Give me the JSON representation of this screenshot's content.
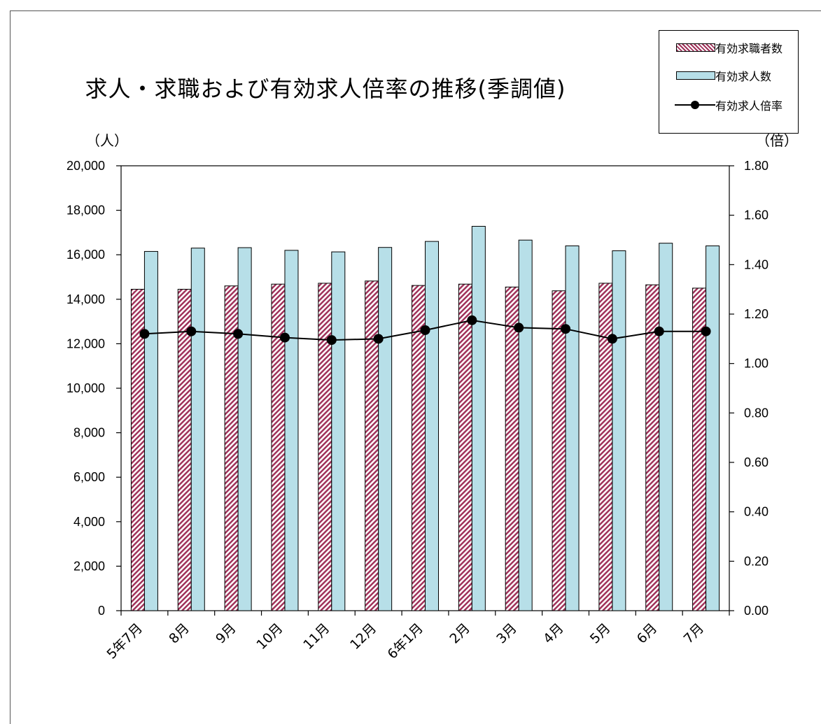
{
  "chart_data": {
    "type": "bar",
    "title": "求人・求職および有効求人倍率の推移(季調値)",
    "y_unit_left": "（人）",
    "y_unit_right": "（倍）",
    "categories": [
      "5年7月",
      "8月",
      "9月",
      "10月",
      "11月",
      "12月",
      "6年1月",
      "2月",
      "3月",
      "4月",
      "5月",
      "6月",
      "7月"
    ],
    "ylim_left": [
      0,
      20000
    ],
    "ylim_right": [
      0,
      1.8
    ],
    "yticks_left": [
      "0",
      "2,000",
      "4,000",
      "6,000",
      "8,000",
      "10,000",
      "12,000",
      "14,000",
      "16,000",
      "18,000",
      "20,000"
    ],
    "yticks_right": [
      "0.00",
      "0.20",
      "0.40",
      "0.60",
      "0.80",
      "1.00",
      "1.20",
      "1.40",
      "1.60",
      "1.80"
    ],
    "legend_position": "top-right",
    "series": [
      {
        "name": "有効求職者数",
        "type": "bar",
        "axis": "left",
        "color": "#a0325a",
        "pattern": "diagonal-hatch",
        "values": [
          14450,
          14450,
          14600,
          14680,
          14720,
          14820,
          14620,
          14680,
          14550,
          14380,
          14720,
          14650,
          14500
        ]
      },
      {
        "name": "有効求人数",
        "type": "bar",
        "axis": "left",
        "color": "#b7dfe8",
        "values": [
          16150,
          16300,
          16320,
          16200,
          16130,
          16330,
          16600,
          17280,
          16660,
          16400,
          16180,
          16520,
          16400
        ]
      },
      {
        "name": "有効求人倍率",
        "type": "line",
        "axis": "right",
        "color": "#000000",
        "marker": "circle",
        "values": [
          1.12,
          1.13,
          1.12,
          1.105,
          1.095,
          1.1,
          1.135,
          1.175,
          1.145,
          1.14,
          1.1,
          1.13,
          1.13
        ]
      }
    ]
  }
}
